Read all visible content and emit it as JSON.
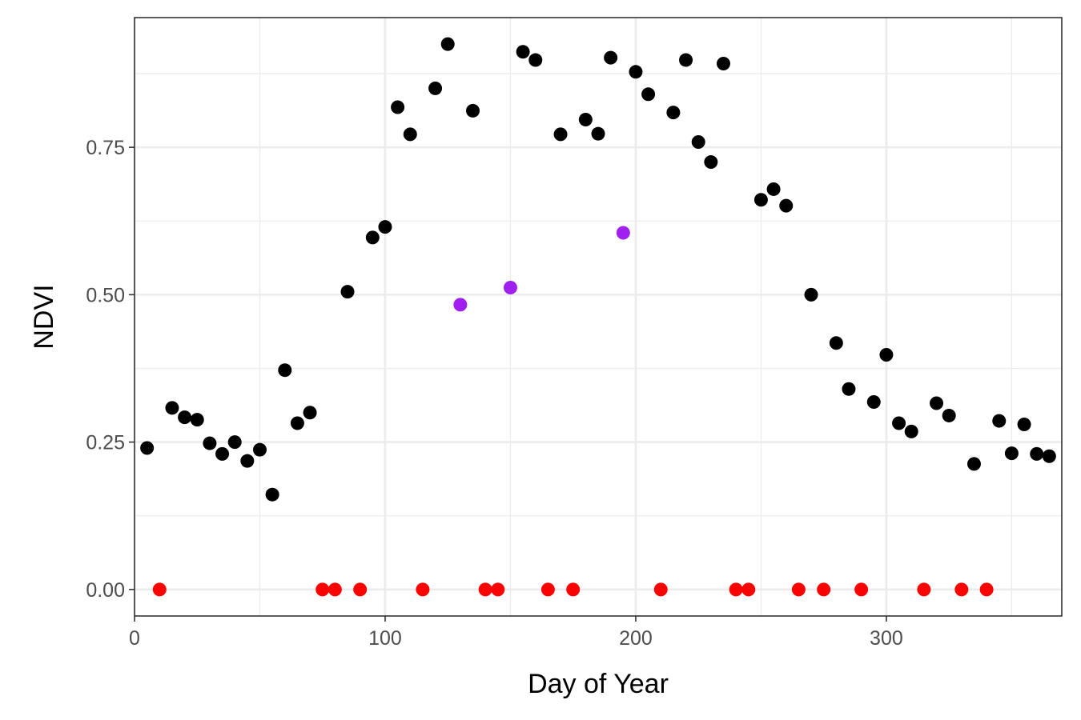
{
  "chart_data": {
    "type": "scatter",
    "xlabel": "Day of Year",
    "ylabel": "NDVI",
    "xlim": [
      0,
      370
    ],
    "ylim": [
      -0.045,
      0.97
    ],
    "x_ticks": [
      0,
      100,
      200,
      300
    ],
    "x_tick_labels": [
      "0",
      "100",
      "200",
      "300"
    ],
    "y_ticks": [
      0,
      0.25,
      0.5,
      0.75
    ],
    "y_tick_labels": [
      "0.00",
      "0.25",
      "0.50",
      "0.75"
    ],
    "grid": true,
    "series": [
      {
        "color": "#000000",
        "x": [
          5,
          15,
          20,
          25,
          30,
          35,
          40,
          45,
          50,
          55,
          60,
          65,
          70,
          85,
          95,
          100,
          105,
          110,
          120,
          125,
          135,
          155,
          160,
          170,
          180,
          185,
          190,
          200,
          205,
          215,
          220,
          225,
          230,
          235,
          250,
          255,
          260,
          270,
          280,
          285,
          295,
          300,
          305,
          310,
          320,
          325,
          335,
          345,
          350,
          355,
          360,
          365
        ],
        "y": [
          0.24,
          0.308,
          0.292,
          0.288,
          0.248,
          0.23,
          0.25,
          0.218,
          0.237,
          0.161,
          0.372,
          0.282,
          0.3,
          0.505,
          0.597,
          0.615,
          0.818,
          0.772,
          0.85,
          0.925,
          0.812,
          0.912,
          0.898,
          0.772,
          0.797,
          0.773,
          0.902,
          0.878,
          0.84,
          0.809,
          0.898,
          0.759,
          0.725,
          0.892,
          0.661,
          0.679,
          0.651,
          0.5,
          0.418,
          0.34,
          0.318,
          0.398,
          0.282,
          0.268,
          0.316,
          0.295,
          0.213,
          0.286,
          0.231,
          0.28,
          0.23,
          0.226
        ]
      },
      {
        "color": "#ff0000",
        "x": [
          10,
          75,
          80,
          90,
          115,
          140,
          145,
          165,
          175,
          210,
          240,
          245,
          265,
          275,
          290,
          315,
          330,
          340
        ],
        "y": [
          0,
          0,
          0,
          0,
          0,
          0,
          0,
          0,
          0,
          0,
          0,
          0,
          0,
          0,
          0,
          0,
          0,
          0
        ]
      },
      {
        "color": "#a020f0",
        "x": [
          130,
          150,
          195
        ],
        "y": [
          0.483,
          0.512,
          0.605
        ]
      }
    ]
  }
}
